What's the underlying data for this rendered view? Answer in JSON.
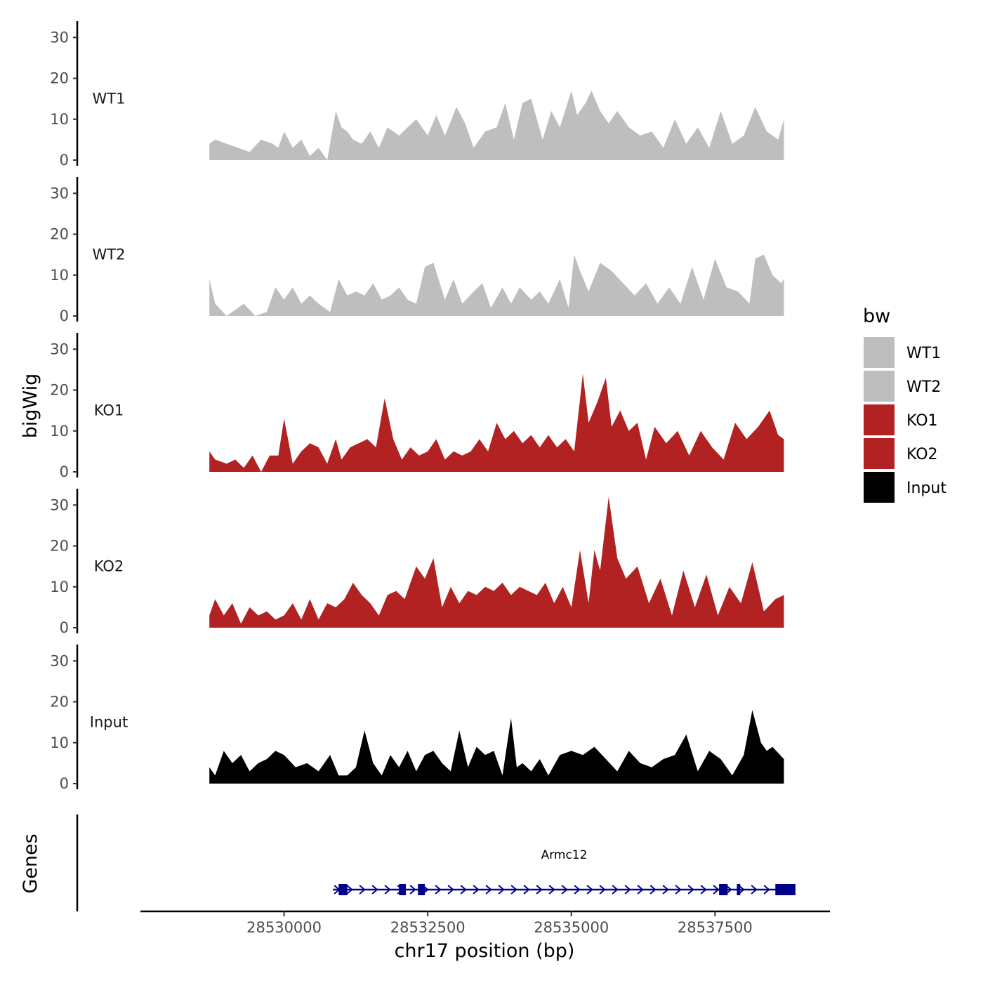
{
  "chart_data": {
    "type": "area",
    "panel_type": "genome-browser coverage tracks",
    "y_axis_label": "bigWig",
    "genes_panel_label": "Genes",
    "x_axis_label": "chr17 position (bp)",
    "xlim": [
      28527500,
      28539500
    ],
    "x_ticks": [
      28530000,
      28532500,
      28535000,
      28537500
    ],
    "x_tick_labels": [
      "28530000",
      "28532500",
      "28535000",
      "28537500"
    ],
    "ylim": [
      0,
      34
    ],
    "y_ticks": [
      0,
      10,
      20,
      30
    ],
    "y_tick_labels": [
      "0",
      "10",
      "20",
      "30"
    ],
    "legend": {
      "title": "bw",
      "entries": [
        {
          "label": "WT1",
          "color": "#bebebe"
        },
        {
          "label": "WT2",
          "color": "#bebebe"
        },
        {
          "label": "KO1",
          "color": "#b22222"
        },
        {
          "label": "KO2",
          "color": "#b22222"
        },
        {
          "label": "Input",
          "color": "#000000"
        }
      ]
    },
    "tracks": [
      {
        "name": "WT1",
        "color": "#bebebe",
        "x": [
          28528700,
          28528800,
          28529000,
          28529200,
          28529400,
          28529600,
          28529800,
          28529900,
          28530000,
          28530150,
          28530300,
          28530450,
          28530600,
          28530750,
          28530900,
          28531000,
          28531100,
          28531200,
          28531350,
          28531500,
          28531650,
          28531800,
          28532000,
          28532150,
          28532300,
          28532500,
          28532650,
          28532800,
          28533000,
          28533150,
          28533300,
          28533500,
          28533700,
          28533850,
          28534000,
          28534150,
          28534300,
          28534500,
          28534650,
          28534800,
          28535000,
          28535100,
          28535250,
          28535350,
          28535500,
          28535650,
          28535800,
          28536000,
          28536200,
          28536400,
          28536600,
          28536800,
          28537000,
          28537200,
          28537400,
          28537600,
          28537800,
          28538000,
          28538200,
          28538400,
          28538600,
          28538700
        ],
        "values": [
          4,
          5,
          4,
          3,
          2,
          5,
          4,
          3,
          7,
          3,
          5,
          1,
          3,
          0,
          12,
          8,
          7,
          5,
          4,
          7,
          3,
          8,
          6,
          8,
          10,
          6,
          11,
          6,
          13,
          9,
          3,
          7,
          8,
          14,
          5,
          14,
          15,
          5,
          12,
          8,
          17,
          11,
          14,
          17,
          12,
          9,
          12,
          8,
          6,
          7,
          3,
          10,
          4,
          8,
          3,
          12,
          4,
          6,
          13,
          7,
          5,
          10
        ]
      },
      {
        "name": "WT2",
        "color": "#bebebe",
        "x": [
          28528700,
          28528800,
          28529000,
          28529200,
          28529300,
          28529500,
          28529700,
          28529850,
          28530000,
          28530150,
          28530300,
          28530450,
          28530600,
          28530800,
          28530950,
          28531100,
          28531250,
          28531400,
          28531550,
          28531700,
          28531850,
          28532000,
          28532150,
          28532300,
          28532450,
          28532600,
          28532800,
          28532950,
          28533100,
          28533300,
          28533450,
          28533600,
          28533800,
          28533950,
          28534100,
          28534300,
          28534450,
          28534600,
          28534800,
          28534950,
          28535050,
          28535150,
          28535300,
          28535500,
          28535700,
          28535900,
          28536100,
          28536300,
          28536500,
          28536700,
          28536900,
          28537100,
          28537300,
          28537500,
          28537700,
          28537900,
          28538100,
          28538200,
          28538350,
          28538500,
          28538650,
          28538700
        ],
        "values": [
          9,
          3,
          0,
          2,
          3,
          0,
          1,
          7,
          4,
          7,
          3,
          5,
          3,
          1,
          9,
          5,
          6,
          5,
          8,
          4,
          5,
          7,
          4,
          3,
          12,
          13,
          4,
          9,
          3,
          6,
          8,
          2,
          7,
          3,
          7,
          4,
          6,
          3,
          9,
          2,
          15,
          11,
          6,
          13,
          11,
          8,
          5,
          8,
          3,
          7,
          3,
          12,
          4,
          14,
          7,
          6,
          3,
          14,
          15,
          10,
          8,
          9
        ]
      },
      {
        "name": "KO1",
        "color": "#b22222",
        "x": [
          28528700,
          28528800,
          28529000,
          28529150,
          28529300,
          28529450,
          28529600,
          28529750,
          28529900,
          28530000,
          28530150,
          28530300,
          28530450,
          28530600,
          28530750,
          28530900,
          28531000,
          28531150,
          28531300,
          28531450,
          28531600,
          28531750,
          28531900,
          28532050,
          28532200,
          28532350,
          28532500,
          28532650,
          28532800,
          28532950,
          28533100,
          28533250,
          28533400,
          28533550,
          28533700,
          28533850,
          28534000,
          28534150,
          28534300,
          28534450,
          28534600,
          28534750,
          28534900,
          28535050,
          28535200,
          28535300,
          28535450,
          28535600,
          28535700,
          28535850,
          28536000,
          28536150,
          28536300,
          28536450,
          28536650,
          28536850,
          28537050,
          28537250,
          28537450,
          28537650,
          28537850,
          28538050,
          28538250,
          28538450,
          28538600,
          28538700
        ],
        "values": [
          5,
          3,
          2,
          3,
          1,
          4,
          0,
          4,
          4,
          13,
          2,
          5,
          7,
          6,
          2,
          8,
          3,
          6,
          7,
          8,
          6,
          18,
          8,
          3,
          6,
          4,
          5,
          8,
          3,
          5,
          4,
          5,
          8,
          5,
          12,
          8,
          10,
          7,
          9,
          6,
          9,
          6,
          8,
          5,
          24,
          12,
          17,
          23,
          11,
          15,
          10,
          12,
          3,
          11,
          7,
          10,
          4,
          10,
          6,
          3,
          12,
          8,
          11,
          15,
          9,
          8
        ]
      },
      {
        "name": "KO2",
        "color": "#b22222",
        "x": [
          28528700,
          28528800,
          28528950,
          28529100,
          28529250,
          28529400,
          28529550,
          28529700,
          28529850,
          28530000,
          28530150,
          28530300,
          28530450,
          28530600,
          28530750,
          28530900,
          28531050,
          28531200,
          28531350,
          28531500,
          28531650,
          28531800,
          28531950,
          28532100,
          28532300,
          28532450,
          28532600,
          28532750,
          28532900,
          28533050,
          28533200,
          28533350,
          28533500,
          28533650,
          28533800,
          28533950,
          28534100,
          28534250,
          28534400,
          28534550,
          28534700,
          28534850,
          28535000,
          28535150,
          28535300,
          28535400,
          28535500,
          28535650,
          28535800,
          28535950,
          28536150,
          28536350,
          28536550,
          28536750,
          28536950,
          28537150,
          28537350,
          28537550,
          28537750,
          28537950,
          28538150,
          28538350,
          28538550,
          28538700
        ],
        "values": [
          3,
          7,
          3,
          6,
          1,
          5,
          3,
          4,
          2,
          3,
          6,
          2,
          7,
          2,
          6,
          5,
          7,
          11,
          8,
          6,
          3,
          8,
          9,
          7,
          15,
          12,
          17,
          5,
          10,
          6,
          9,
          8,
          10,
          9,
          11,
          8,
          10,
          9,
          8,
          11,
          6,
          10,
          5,
          19,
          6,
          19,
          14,
          32,
          17,
          12,
          15,
          6,
          12,
          3,
          14,
          5,
          13,
          3,
          10,
          6,
          16,
          4,
          7,
          8
        ]
      },
      {
        "name": "Input",
        "color": "#000000",
        "x": [
          28528700,
          28528800,
          28528950,
          28529100,
          28529250,
          28529400,
          28529550,
          28529700,
          28529850,
          28530000,
          28530200,
          28530400,
          28530600,
          28530800,
          28530950,
          28531100,
          28531250,
          28531400,
          28531550,
          28531700,
          28531850,
          28532000,
          28532150,
          28532300,
          28532450,
          28532600,
          28532750,
          28532900,
          28533050,
          28533200,
          28533350,
          28533500,
          28533650,
          28533800,
          28533950,
          28534050,
          28534150,
          28534300,
          28534450,
          28534600,
          28534800,
          28535000,
          28535200,
          28535400,
          28535600,
          28535800,
          28536000,
          28536200,
          28536400,
          28536600,
          28536800,
          28537000,
          28537200,
          28537400,
          28537600,
          28537800,
          28538000,
          28538150,
          28538300,
          28538400,
          28538500,
          28538700
        ],
        "values": [
          4,
          2,
          8,
          5,
          7,
          3,
          5,
          6,
          8,
          7,
          4,
          5,
          3,
          7,
          2,
          2,
          4,
          13,
          5,
          2,
          7,
          4,
          8,
          3,
          7,
          8,
          5,
          3,
          13,
          4,
          9,
          7,
          8,
          2,
          16,
          4,
          5,
          3,
          6,
          2,
          7,
          8,
          7,
          9,
          6,
          3,
          8,
          5,
          4,
          6,
          7,
          12,
          3,
          8,
          6,
          2,
          7,
          18,
          10,
          8,
          9,
          6
        ]
      }
    ],
    "genes": [
      {
        "name": "Armc12",
        "strand": "+",
        "start": 28530850,
        "end": 28538900,
        "color": "#00008b",
        "exons": [
          {
            "start": 28530950,
            "end": 28531100
          },
          {
            "start": 28532000,
            "end": 28532120
          },
          {
            "start": 28532330,
            "end": 28532450
          },
          {
            "start": 28537570,
            "end": 28537720
          },
          {
            "start": 28537880,
            "end": 28537940
          },
          {
            "start": 28538550,
            "end": 28538900
          }
        ]
      }
    ]
  }
}
